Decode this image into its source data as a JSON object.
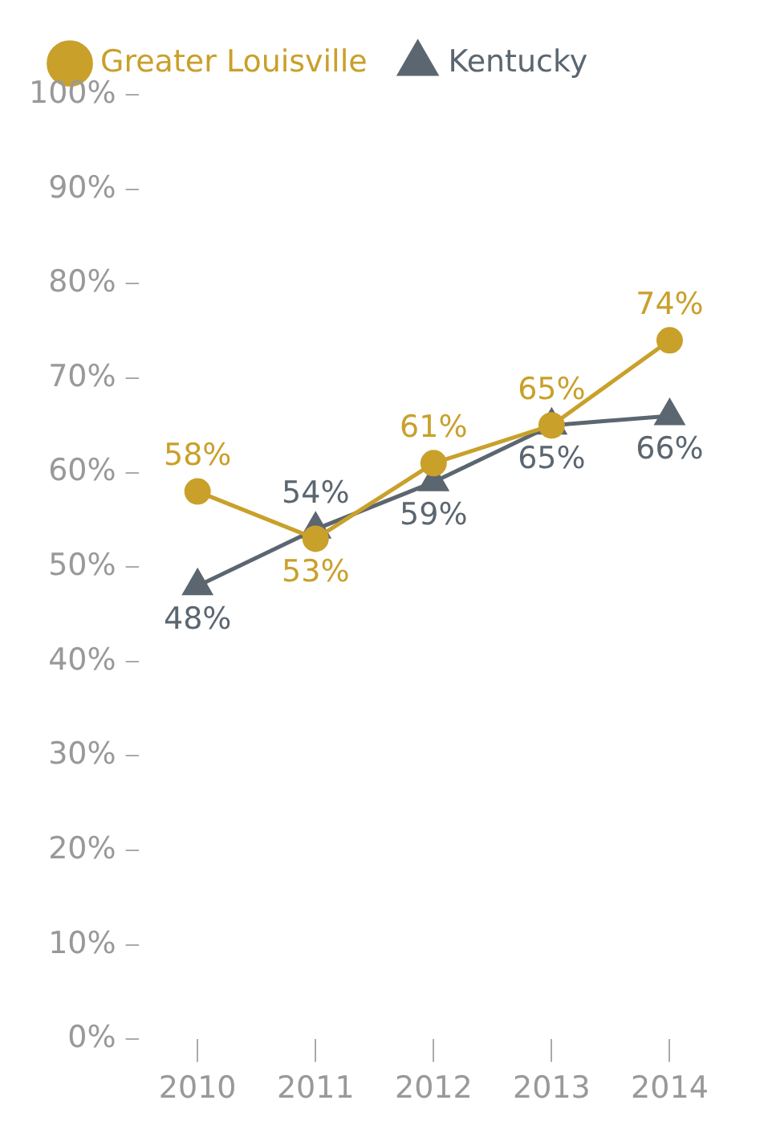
{
  "chart_data": {
    "type": "line",
    "categories": [
      "2010",
      "2011",
      "2012",
      "2013",
      "2014"
    ],
    "series": [
      {
        "name": "Greater Louisville",
        "color": "#c9a02a",
        "marker": "circle",
        "values": [
          58,
          53,
          61,
          65,
          74
        ],
        "value_labels": [
          "58%",
          "53%",
          "61%",
          "65%",
          "74%"
        ]
      },
      {
        "name": "Kentucky",
        "color": "#5b6670",
        "marker": "triangle",
        "values": [
          48,
          54,
          59,
          65,
          66
        ],
        "value_labels": [
          "48%",
          "54%",
          "59%",
          "65%",
          "66%"
        ]
      }
    ],
    "ylim": [
      0,
      100
    ],
    "yticks": [
      {
        "value": 0,
        "label": "0%"
      },
      {
        "value": 10,
        "label": "10%"
      },
      {
        "value": 20,
        "label": "20%"
      },
      {
        "value": 30,
        "label": "30%"
      },
      {
        "value": 40,
        "label": "40%"
      },
      {
        "value": 50,
        "label": "50%"
      },
      {
        "value": 60,
        "label": "60%"
      },
      {
        "value": 70,
        "label": "70%"
      },
      {
        "value": 80,
        "label": "80%"
      },
      {
        "value": 90,
        "label": "90%"
      },
      {
        "value": 100,
        "label": "100%"
      }
    ],
    "grid": false,
    "legend": "top left",
    "line_style": "solid"
  }
}
